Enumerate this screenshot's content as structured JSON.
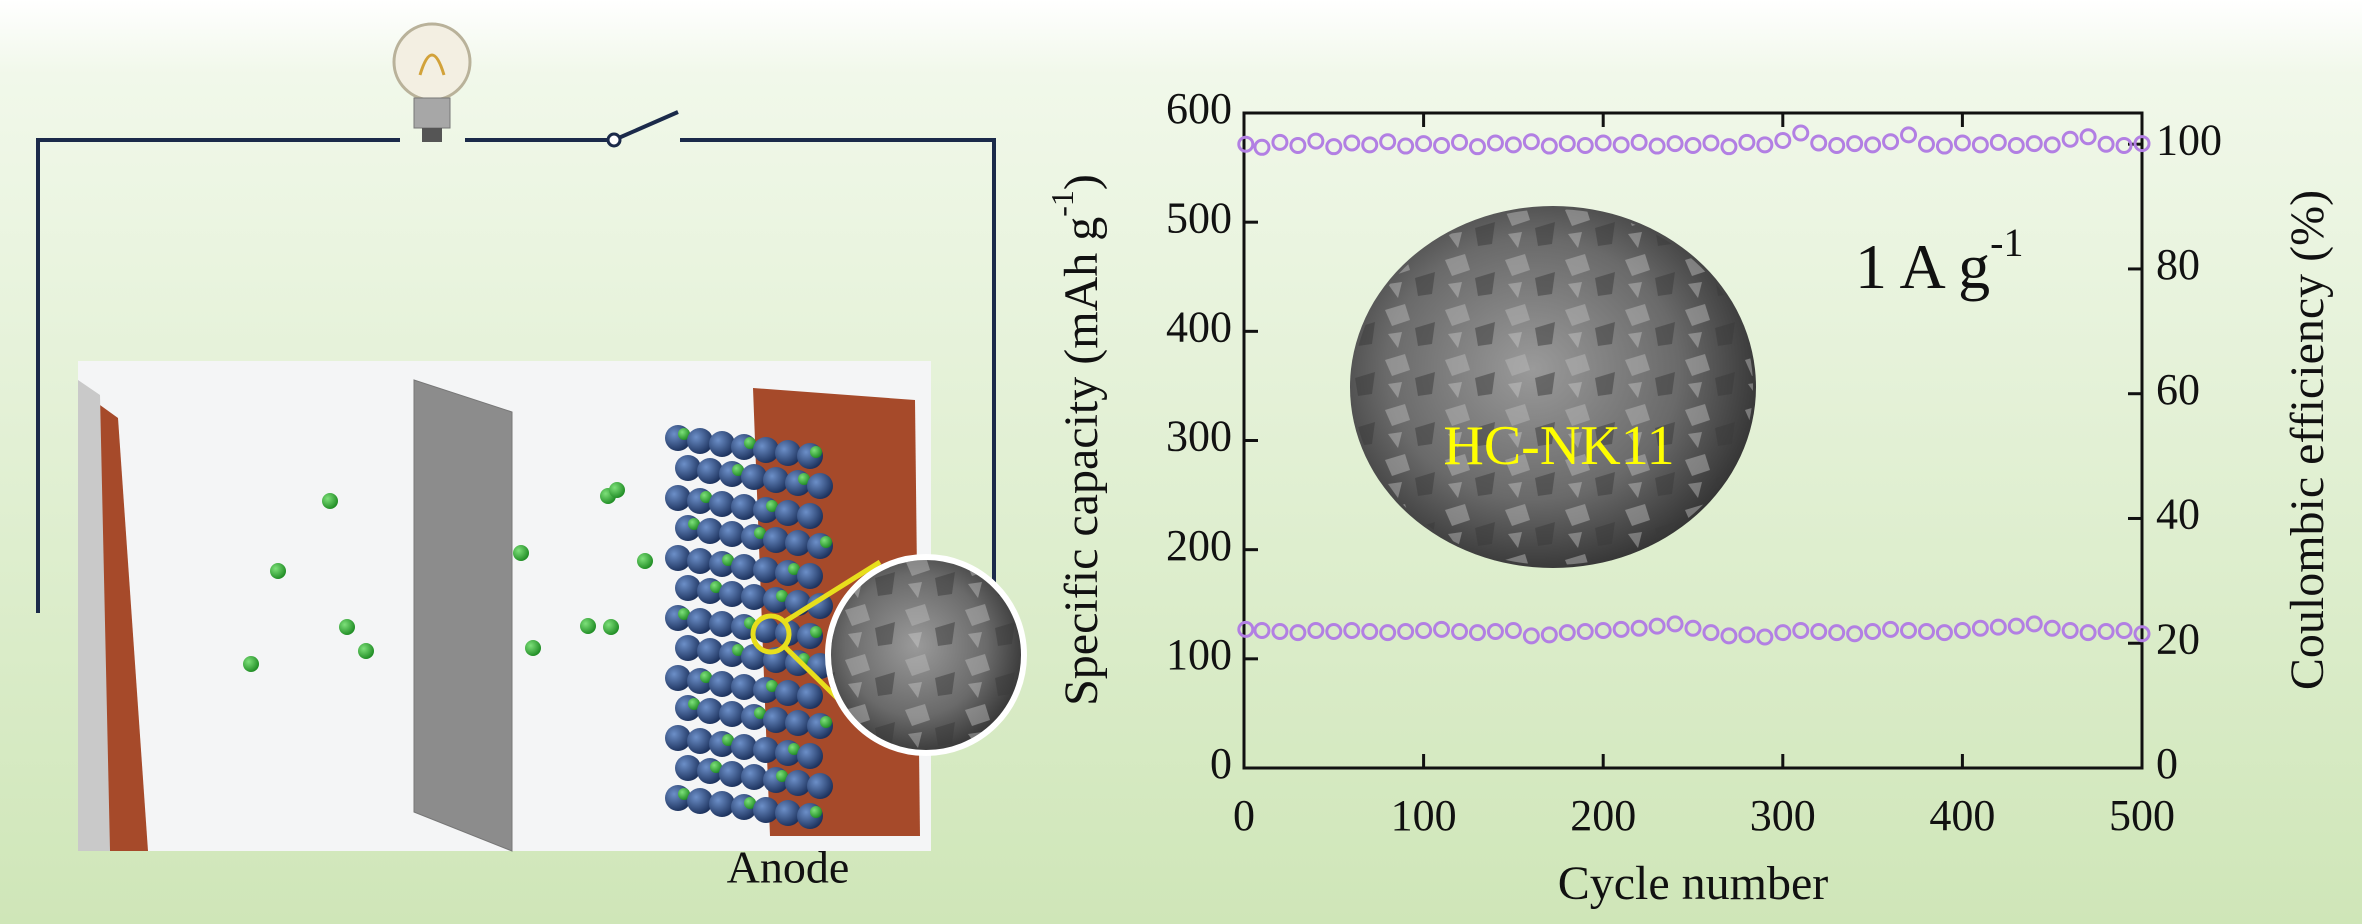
{
  "illustration": {
    "label": "Anode"
  },
  "chart_data": {
    "type": "scatter",
    "x_label": "Cycle number",
    "y_label": {
      "text": "Specific capacity (mAh g",
      "sup": "-1",
      "tail": ")"
    },
    "y2_label": "Coulombic efficiency (%)",
    "annotations": [
      {
        "text": "1 A g",
        "sup": "-1"
      },
      {
        "text": "HC-NK11"
      }
    ],
    "xlim": [
      0,
      500
    ],
    "xticks": [
      0,
      100,
      200,
      300,
      400,
      500
    ],
    "ylim": [
      0,
      600
    ],
    "yticks": [
      0,
      100,
      200,
      300,
      400,
      500,
      600
    ],
    "y2lim": [
      0,
      105
    ],
    "y2ticks": [
      0,
      20,
      40,
      60,
      80,
      100
    ],
    "x": [
      1,
      10,
      20,
      30,
      40,
      50,
      60,
      70,
      80,
      90,
      100,
      110,
      120,
      130,
      140,
      150,
      160,
      170,
      180,
      190,
      200,
      210,
      220,
      230,
      240,
      250,
      260,
      270,
      280,
      290,
      300,
      310,
      320,
      330,
      340,
      350,
      360,
      370,
      380,
      390,
      400,
      410,
      420,
      430,
      440,
      450,
      460,
      470,
      480,
      490,
      500
    ],
    "series": [
      {
        "color": "#b27fe3",
        "axis": "y",
        "values": [
          127,
          126,
          125,
          124,
          126,
          125,
          126,
          125,
          124,
          125,
          126,
          127,
          125,
          124,
          125,
          126,
          121,
          122,
          124,
          125,
          126,
          127,
          128,
          130,
          132,
          128,
          124,
          121,
          122,
          120,
          124,
          126,
          125,
          124,
          123,
          125,
          127,
          126,
          125,
          124,
          126,
          128,
          129,
          130,
          132,
          128,
          126,
          124,
          125,
          126,
          123
        ]
      },
      {
        "color": "#b27fe3",
        "axis": "y2",
        "values": [
          100,
          99.5,
          100.3,
          99.8,
          100.5,
          99.6,
          100.2,
          99.9,
          100.4,
          99.7,
          100.1,
          99.8,
          100.3,
          99.6,
          100.2,
          99.9,
          100.4,
          99.7,
          100.1,
          99.8,
          100.2,
          99.9,
          100.3,
          99.7,
          100.1,
          99.8,
          100.2,
          99.6,
          100.3,
          99.9,
          100.6,
          101.8,
          100.2,
          99.8,
          100.1,
          99.9,
          100.4,
          101.5,
          100.0,
          99.7,
          100.2,
          99.9,
          100.3,
          99.8,
          100.1,
          99.9,
          100.8,
          101.2,
          100.0,
          99.8,
          100.1
        ]
      }
    ]
  }
}
